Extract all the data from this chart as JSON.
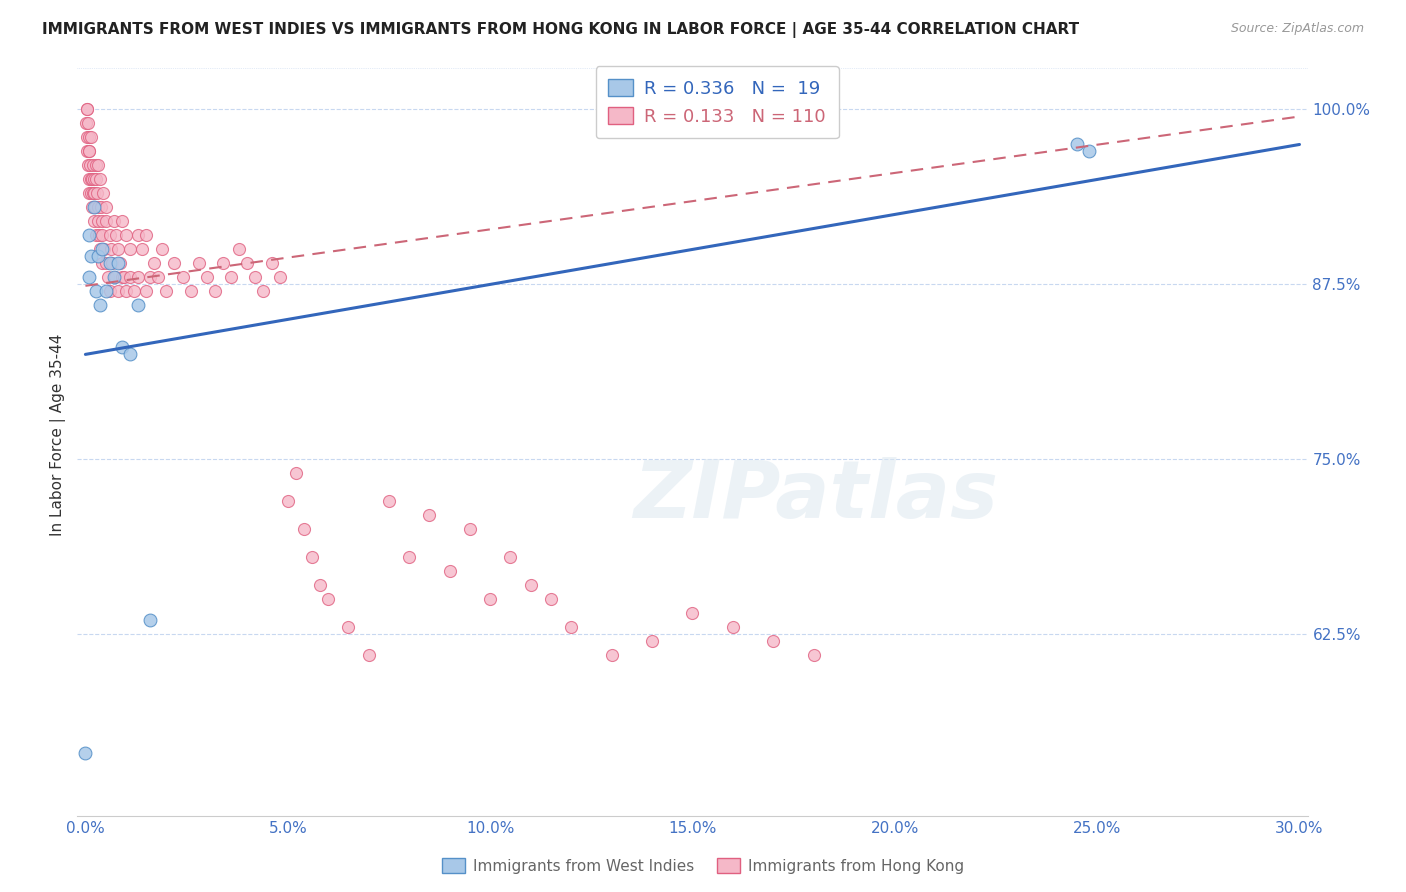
{
  "title": "IMMIGRANTS FROM WEST INDIES VS IMMIGRANTS FROM HONG KONG IN LABOR FORCE | AGE 35-44 CORRELATION CHART",
  "source": "Source: ZipAtlas.com",
  "ylabel": "In Labor Force | Age 35-44",
  "legend_label1": "Immigrants from West Indies",
  "legend_label2": "Immigrants from Hong Kong",
  "R1": 0.336,
  "N1": 19,
  "R2": 0.133,
  "N2": 110,
  "color_blue_fill": "#a8c8e8",
  "color_blue_edge": "#5590c8",
  "color_pink_fill": "#f5b8c8",
  "color_pink_edge": "#e06080",
  "color_blue_line": "#3366bb",
  "color_pink_line": "#cc6677",
  "xlim_lo": -0.002,
  "xlim_hi": 0.302,
  "ylim_lo": 0.495,
  "ylim_hi": 1.04,
  "xtick_vals": [
    0.0,
    0.05,
    0.1,
    0.15,
    0.2,
    0.25,
    0.3
  ],
  "xtick_labels": [
    "0.0%",
    "5.0%",
    "10.0%",
    "15.0%",
    "20.0%",
    "25.0%",
    "30.0%"
  ],
  "ytick_vals": [
    0.625,
    0.75,
    0.875,
    1.0
  ],
  "ytick_labels": [
    "62.5%",
    "75.0%",
    "87.5%",
    "100.0%"
  ],
  "tick_color": "#4472c4",
  "grid_color": "#c8d8f0",
  "watermark": "ZIPatlas",
  "wi_x": [
    0.0008,
    0.001,
    0.0015,
    0.002,
    0.0025,
    0.003,
    0.0035,
    0.004,
    0.005,
    0.006,
    0.007,
    0.008,
    0.009,
    0.011,
    0.013,
    0.016,
    0.0,
    0.245,
    0.248
  ],
  "wi_y": [
    0.88,
    0.91,
    0.895,
    0.93,
    0.87,
    0.895,
    0.86,
    0.9,
    0.87,
    0.89,
    0.88,
    0.89,
    0.83,
    0.825,
    0.86,
    0.635,
    0.54,
    0.975,
    0.97
  ],
  "hk_x": [
    0.0002,
    0.0003,
    0.0004,
    0.0005,
    0.0005,
    0.0006,
    0.0007,
    0.0008,
    0.0008,
    0.0009,
    0.001,
    0.001,
    0.0012,
    0.0013,
    0.0014,
    0.0015,
    0.0016,
    0.0017,
    0.0018,
    0.0019,
    0.002,
    0.002,
    0.0022,
    0.0023,
    0.0025,
    0.0026,
    0.0027,
    0.0028,
    0.003,
    0.003,
    0.0032,
    0.0033,
    0.0035,
    0.0036,
    0.0038,
    0.004,
    0.004,
    0.0042,
    0.0044,
    0.0046,
    0.005,
    0.005,
    0.0052,
    0.0055,
    0.006,
    0.006,
    0.0062,
    0.0065,
    0.007,
    0.0072,
    0.0075,
    0.008,
    0.008,
    0.0085,
    0.009,
    0.009,
    0.0095,
    0.01,
    0.01,
    0.011,
    0.011,
    0.012,
    0.013,
    0.013,
    0.014,
    0.015,
    0.015,
    0.016,
    0.017,
    0.018,
    0.019,
    0.02,
    0.022,
    0.024,
    0.026,
    0.028,
    0.03,
    0.032,
    0.034,
    0.036,
    0.038,
    0.04,
    0.042,
    0.044,
    0.046,
    0.048,
    0.05,
    0.052,
    0.054,
    0.056,
    0.058,
    0.06,
    0.065,
    0.07,
    0.075,
    0.08,
    0.085,
    0.09,
    0.095,
    0.1,
    0.105,
    0.11,
    0.115,
    0.12,
    0.13,
    0.14,
    0.15,
    0.16,
    0.17,
    0.18
  ],
  "hk_y": [
    0.99,
    1.0,
    0.98,
    0.97,
    1.0,
    0.96,
    0.99,
    0.95,
    0.98,
    0.97,
    0.94,
    0.97,
    0.96,
    0.95,
    0.94,
    0.98,
    0.93,
    0.95,
    0.94,
    0.96,
    0.92,
    0.95,
    0.94,
    0.93,
    0.96,
    0.95,
    0.91,
    0.94,
    0.93,
    0.96,
    0.92,
    0.91,
    0.95,
    0.9,
    0.93,
    0.89,
    0.92,
    0.91,
    0.94,
    0.9,
    0.93,
    0.89,
    0.92,
    0.88,
    0.91,
    0.87,
    0.9,
    0.89,
    0.92,
    0.88,
    0.91,
    0.87,
    0.9,
    0.89,
    0.88,
    0.92,
    0.88,
    0.87,
    0.91,
    0.88,
    0.9,
    0.87,
    0.91,
    0.88,
    0.9,
    0.87,
    0.91,
    0.88,
    0.89,
    0.88,
    0.9,
    0.87,
    0.89,
    0.88,
    0.87,
    0.89,
    0.88,
    0.87,
    0.89,
    0.88,
    0.9,
    0.89,
    0.88,
    0.87,
    0.89,
    0.88,
    0.72,
    0.74,
    0.7,
    0.68,
    0.66,
    0.65,
    0.63,
    0.61,
    0.72,
    0.68,
    0.71,
    0.67,
    0.7,
    0.65,
    0.68,
    0.66,
    0.65,
    0.63,
    0.61,
    0.62,
    0.64,
    0.63,
    0.62,
    0.61
  ],
  "wi_line_x": [
    0.0,
    0.3
  ],
  "wi_line_y": [
    0.825,
    0.975
  ],
  "hk_line_x": [
    0.0,
    0.3
  ],
  "hk_line_y": [
    0.874,
    0.995
  ]
}
